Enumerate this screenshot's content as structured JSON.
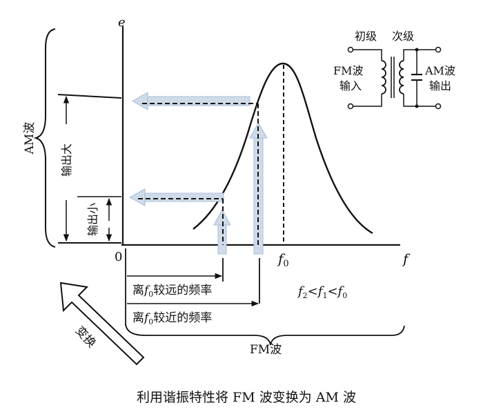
{
  "axes": {
    "y_label": "e",
    "x_label": "f",
    "origin": "0",
    "f0_base": "f",
    "f0_sub": "0"
  },
  "circuit": {
    "primary": "初级",
    "secondary": "次级",
    "input_line1": "FM波",
    "input_line2": "输入",
    "output_line1": "AM波",
    "output_line2": "输出"
  },
  "left": {
    "am_wave": "AM波",
    "output_large": "输出大",
    "output_small": "输出小"
  },
  "freq_labels": {
    "far_pre": "离",
    "far_post": "较远的频率",
    "near_pre": "离",
    "near_post": "较近的频率"
  },
  "inequality": "f2<f1<f0",
  "fm_wave": "FM波",
  "transform": "变换",
  "caption": "利用谐振特性将 FM 波变换为 AM 波",
  "colors": {
    "arrow_fill": "#cfdbe9",
    "arrow_stroke": "#a8bdd6",
    "line": "#111111"
  }
}
